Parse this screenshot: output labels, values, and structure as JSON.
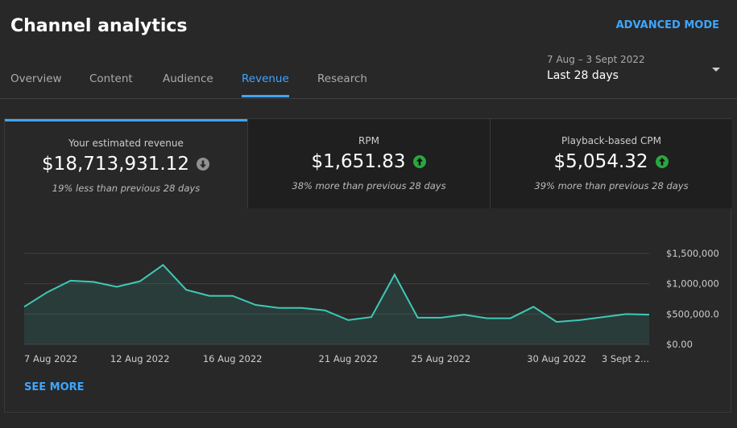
{
  "header": {
    "title": "Channel analytics",
    "advanced_mode": "ADVANCED MODE"
  },
  "tabs": [
    "Overview",
    "Content",
    "Audience",
    "Revenue",
    "Research"
  ],
  "active_tab": 3,
  "date_range": {
    "range": "7 Aug – 3 Sept 2022",
    "label": "Last 28 days"
  },
  "metrics": [
    {
      "label": "Your estimated revenue",
      "value": "$18,713,931.12",
      "trend": "down",
      "comparison": "19% less than previous 28 days"
    },
    {
      "label": "RPM",
      "value": "$1,651.83",
      "trend": "up",
      "comparison": "38% more than previous 28 days"
    },
    {
      "label": "Playback-based CPM",
      "value": "$5,054.32",
      "trend": "up",
      "comparison": "39% more than previous 28 days"
    }
  ],
  "active_metric": 0,
  "chart_data": {
    "type": "area",
    "categories": [
      "7 Aug 2022",
      null,
      null,
      null,
      null,
      "12 Aug 2022",
      null,
      null,
      null,
      "16 Aug 2022",
      null,
      null,
      null,
      null,
      "21 Aug 2022",
      null,
      null,
      null,
      "25 Aug 2022",
      null,
      null,
      null,
      null,
      "30 Aug 2022",
      null,
      null,
      null,
      "3 Sept 2..."
    ],
    "series": [
      {
        "color": "#3ec9b6",
        "values": [
          620000,
          860000,
          1050000,
          1030000,
          950000,
          1040000,
          1310000,
          900000,
          800000,
          800000,
          650000,
          600000,
          600000,
          560000,
          400000,
          450000,
          1150000,
          440000,
          440000,
          490000,
          430000,
          430000,
          620000,
          370000,
          400000,
          450000,
          500000,
          490000
        ]
      }
    ],
    "ylim": [
      0,
      1500000
    ],
    "yticks": [
      {
        "value": 0,
        "label": "$0.00"
      },
      {
        "value": 500000,
        "label": "$500,000.0"
      },
      {
        "value": 1000000,
        "label": "$1,000,000"
      },
      {
        "value": 1500000,
        "label": "$1,500,000"
      }
    ],
    "grid": true
  },
  "see_more": "SEE MORE"
}
